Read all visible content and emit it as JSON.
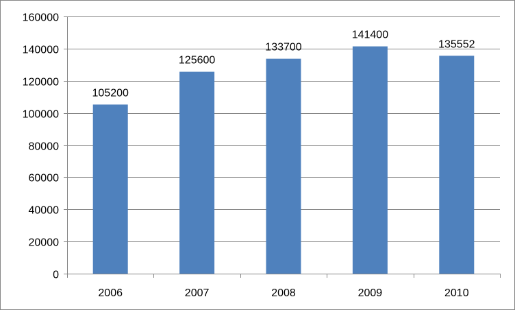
{
  "chart_data": {
    "type": "bar",
    "categories": [
      "2006",
      "2007",
      "2008",
      "2009",
      "2010"
    ],
    "values": [
      105200,
      125600,
      133700,
      141400,
      135552
    ],
    "data_labels": [
      "105200",
      "125600",
      "133700",
      "141400",
      "135552"
    ],
    "title": "",
    "xlabel": "",
    "ylabel": "",
    "ylim": [
      0,
      160000
    ],
    "yticks": [
      0,
      20000,
      40000,
      60000,
      80000,
      100000,
      120000,
      140000,
      160000
    ],
    "ytick_labels": [
      "0",
      "20000",
      "40000",
      "60000",
      "80000",
      "100000",
      "120000",
      "140000",
      "160000"
    ],
    "grid": true,
    "legend": "none",
    "colors": {
      "bar": "#4F81BD",
      "grid": "#868686",
      "axis": "#868686",
      "text": "#000000"
    }
  }
}
